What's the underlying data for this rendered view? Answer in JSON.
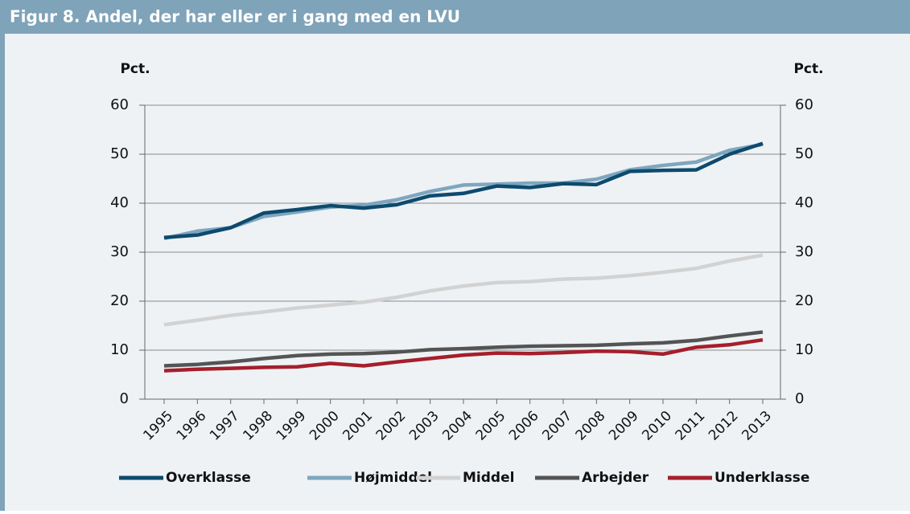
{
  "chart_data": {
    "type": "line",
    "title": "Figur 8. Andel, der har eller er i gang med en LVU",
    "ylabel": "Pct.",
    "y2label": "Pct.",
    "categories": [
      "1995",
      "1996",
      "1997",
      "1998",
      "1999",
      "2000",
      "2001",
      "2002",
      "2003",
      "2004",
      "2005",
      "2006",
      "2007",
      "2008",
      "2009",
      "2010",
      "2011",
      "2012",
      "2013"
    ],
    "series": [
      {
        "name": "Overklasse",
        "color": "#0d4a6e",
        "values": [
          33,
          33.5,
          35,
          38,
          38.7,
          39.5,
          39,
          39.7,
          41.5,
          42,
          43.5,
          43.2,
          44,
          43.8,
          46.5,
          46.7,
          46.8,
          50,
          52.2
        ]
      },
      {
        "name": "Højmiddel",
        "color": "#7fa6bf",
        "values": [
          32.8,
          34.3,
          35,
          37.3,
          38.2,
          39.2,
          39.6,
          40.7,
          42.4,
          43.7,
          43.9,
          44.1,
          44.1,
          44.9,
          46.8,
          47.7,
          48.4,
          50.8,
          52
        ]
      },
      {
        "name": "Middel",
        "color": "#d2d2d2",
        "values": [
          15.2,
          16.1,
          17.1,
          17.8,
          18.6,
          19.2,
          19.8,
          20.8,
          22.1,
          23.1,
          23.8,
          24,
          24.5,
          24.7,
          25.2,
          25.9,
          26.7,
          28.2,
          29.4
        ]
      },
      {
        "name": "Arbejder",
        "color": "#545454",
        "values": [
          6.8,
          7.1,
          7.6,
          8.3,
          8.9,
          9.2,
          9.3,
          9.6,
          10.1,
          10.3,
          10.6,
          10.8,
          10.9,
          11,
          11.3,
          11.5,
          12,
          12.9,
          13.7
        ]
      },
      {
        "name": "Underklasse",
        "color": "#a51f2b",
        "values": [
          5.8,
          6.1,
          6.3,
          6.5,
          6.6,
          7.3,
          6.8,
          7.6,
          8.3,
          9,
          9.4,
          9.3,
          9.5,
          9.8,
          9.7,
          9.2,
          10.6,
          11.1,
          12.1
        ]
      }
    ],
    "ylim": [
      0,
      60
    ],
    "yticks": [
      0,
      10,
      20,
      30,
      40,
      50,
      60
    ],
    "y2lim": [
      0,
      60
    ],
    "y2ticks": [
      0,
      10,
      20,
      30,
      40,
      50,
      60
    ],
    "grid": true,
    "legend": "bottom"
  }
}
